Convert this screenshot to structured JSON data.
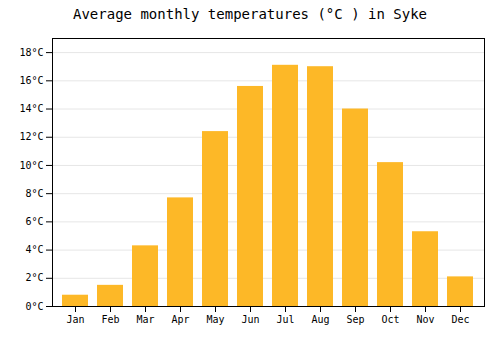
{
  "chart_data": {
    "type": "bar",
    "title": "Average monthly temperatures (°C ) in Syke",
    "categories": [
      "Jan",
      "Feb",
      "Mar",
      "Apr",
      "May",
      "Jun",
      "Jul",
      "Aug",
      "Sep",
      "Oct",
      "Nov",
      "Dec"
    ],
    "values": [
      0.8,
      1.5,
      4.3,
      7.7,
      12.4,
      15.6,
      17.1,
      17.0,
      14.0,
      10.2,
      5.3,
      2.1
    ],
    "color": "#FDB827",
    "ylim": [
      0,
      19
    ],
    "yticks": [
      {
        "value": 0,
        "label": "0°C"
      },
      {
        "value": 2,
        "label": "2°C"
      },
      {
        "value": 4,
        "label": "4°C"
      },
      {
        "value": 6,
        "label": "6°C"
      },
      {
        "value": 8,
        "label": "8°C"
      },
      {
        "value": 10,
        "label": "10°C"
      },
      {
        "value": 12,
        "label": "12°C"
      },
      {
        "value": 14,
        "label": "14°C"
      },
      {
        "value": 16,
        "label": "16°C"
      },
      {
        "value": 18,
        "label": "18°C"
      }
    ],
    "grid": true
  }
}
